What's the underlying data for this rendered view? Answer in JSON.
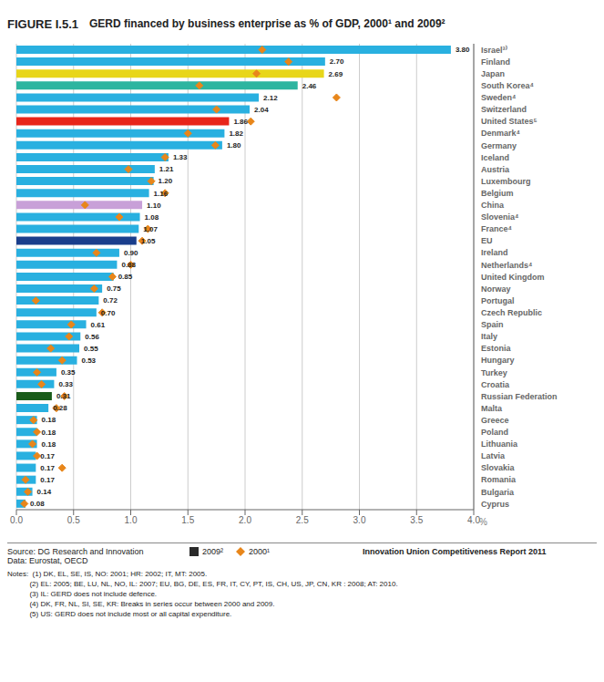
{
  "chart_data": {
    "type": "bar",
    "orientation": "horizontal",
    "title": "GERD financed by business enterprise as % of GDP, 2000¹ and 2009²",
    "annotations": [
      "FIGURE I.5.1",
      "Source: DG Research and Innovation",
      "Data: Eurostat, OECD",
      "Notes:  (1) DK, EL, SE, IS, NO: 2001; HR: 2002; IT, MT: 2005.\n           (2) EL: 2005; BE, LU, NL, NO, IL: 2007; EU, BG, DE, ES, FR, IT, CY, PT, IS, CH, US, JP, CN, KR : 2008; AT: 2010.\n           (3) IL: GERD does not include defence.\n           (4) DK, FR, NL, SI, SE, KR: Breaks in series occur between 2000 and 2009.\n           (5) US: GERD does not include most or all capital expenditure.",
      "Innovation Union Competitiveness Report 2011"
    ],
    "x_label": "%",
    "categories": [
      "Israel³⁾",
      "Finland",
      "Japan",
      "South Korea⁴",
      "Sweden⁴",
      "Switzerland",
      "United States⁵",
      "Denmark⁴",
      "Germany",
      "Iceland",
      "Austria",
      "Luxembourg",
      "Belgium",
      "China",
      "Slovenia⁴",
      "France⁴",
      "EU",
      "Ireland",
      "Netherlands⁴",
      "United Kingdom",
      "Norway",
      "Portugal",
      "Czech Republic",
      "Spain",
      "Italy",
      "Estonia",
      "Hungary",
      "Turkey",
      "Croatia",
      "Russian Federation",
      "Malta",
      "Greece",
      "Poland",
      "Lithuania",
      "Latvia",
      "Slovakia",
      "Romania",
      "Bulgaria",
      "Cyprus"
    ],
    "series": [
      {
        "name": "2009²",
        "type": "bar",
        "color": "#2a2a2a",
        "colors": [
          "#29b0e0",
          "#29b0e0",
          "#e8d619",
          "#2db5a0",
          "#29b0e0",
          "#29b0e0",
          "#e8251a",
          "#29b0e0",
          "#29b0e0",
          "#29b0e0",
          "#29b0e0",
          "#29b0e0",
          "#29b0e0",
          "#c8a0d8",
          "#29b0e0",
          "#29b0e0",
          "#1a3e8c",
          "#29b0e0",
          "#29b0e0",
          "#29b0e0",
          "#29b0e0",
          "#29b0e0",
          "#29b0e0",
          "#29b0e0",
          "#29b0e0",
          "#29b0e0",
          "#29b0e0",
          "#29b0e0",
          "#29b0e0",
          "#1a5c1a",
          "#29b0e0",
          "#29b0e0",
          "#29b0e0",
          "#29b0e0",
          "#29b0e0",
          "#29b0e0",
          "#29b0e0",
          "#29b0e0",
          "#29b0e0"
        ],
        "values": [
          3.8,
          2.7,
          2.69,
          2.46,
          2.12,
          2.04,
          1.86,
          1.82,
          1.8,
          1.33,
          1.21,
          1.2,
          1.16,
          1.1,
          1.08,
          1.07,
          1.05,
          0.9,
          0.88,
          0.85,
          0.75,
          0.72,
          0.7,
          0.61,
          0.56,
          0.55,
          0.53,
          0.35,
          0.33,
          0.31,
          0.28,
          0.18,
          0.18,
          0.18,
          0.17,
          0.17,
          0.17,
          0.14,
          0.08
        ],
        "value_labels": [
          "3.80",
          "2.70",
          "2.69",
          "2.46",
          "2.12",
          "2.04",
          "1.86",
          "1.82",
          "1.80",
          "1.33",
          "1.21",
          "1.20",
          "1.16",
          "1.10",
          "1.08",
          "1.07",
          "1.05",
          "0.90",
          "0.88",
          "0.85",
          "0.75",
          "0.72",
          "0.70",
          "0.61",
          "0.56",
          "0.55",
          "0.53",
          "0.35",
          "0.33",
          "0.31",
          "0.28",
          "0.18",
          "0.18",
          "0.18",
          "0.17",
          "0.17",
          "0.17",
          "0.14",
          "0.08"
        ],
        "data_labels": true
      },
      {
        "name": "2000¹",
        "type": "scatter",
        "marker": "diamond",
        "color": "#e8861a",
        "values": [
          2.15,
          2.38,
          2.1,
          1.6,
          2.8,
          1.75,
          2.05,
          1.5,
          1.74,
          1.3,
          0.98,
          1.18,
          1.3,
          0.6,
          0.9,
          1.15,
          1.1,
          0.7,
          1.0,
          0.84,
          0.68,
          0.17,
          0.75,
          0.48,
          0.46,
          0.3,
          0.4,
          0.18,
          0.22,
          0.42,
          0.35,
          0.15,
          0.18,
          0.14,
          0.18,
          0.4,
          0.08,
          0.1,
          0.07
        ]
      }
    ],
    "xlim": [
      0,
      4.0
    ],
    "xticks": [
      {
        "value": 0,
        "label": "0.0"
      },
      {
        "value": 0.5,
        "label": "0.5"
      },
      {
        "value": 1.0,
        "label": "1.0"
      },
      {
        "value": 1.5,
        "label": "1.5"
      },
      {
        "value": 2.0,
        "label": "2.0"
      },
      {
        "value": 2.5,
        "label": "2.5"
      },
      {
        "value": 3.0,
        "label": "3.0"
      },
      {
        "value": 3.5,
        "label": "3.5"
      },
      {
        "value": 4.0,
        "label": "4.0"
      }
    ],
    "grid": true,
    "legend": "bottom"
  }
}
